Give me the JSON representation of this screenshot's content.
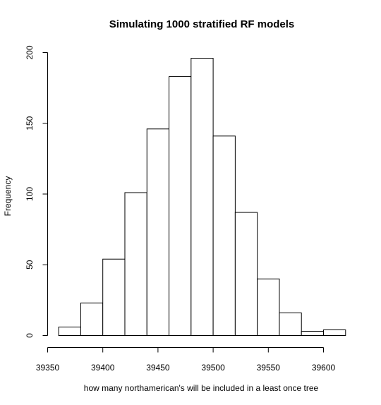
{
  "chart_data": {
    "type": "bar",
    "title": "Simulating 1000 stratified RF models",
    "xlabel": "how many northamerican's will be included in a least once tree",
    "ylabel": "Frequency",
    "bins": [
      {
        "start": 39360,
        "end": 39380,
        "count": 6
      },
      {
        "start": 39380,
        "end": 39400,
        "count": 23
      },
      {
        "start": 39400,
        "end": 39420,
        "count": 54
      },
      {
        "start": 39420,
        "end": 39440,
        "count": 101
      },
      {
        "start": 39440,
        "end": 39460,
        "count": 146
      },
      {
        "start": 39460,
        "end": 39480,
        "count": 183
      },
      {
        "start": 39480,
        "end": 39500,
        "count": 196
      },
      {
        "start": 39500,
        "end": 39520,
        "count": 141
      },
      {
        "start": 39520,
        "end": 39540,
        "count": 87
      },
      {
        "start": 39540,
        "end": 39560,
        "count": 40
      },
      {
        "start": 39560,
        "end": 39580,
        "count": 16
      },
      {
        "start": 39580,
        "end": 39600,
        "count": 3
      },
      {
        "start": 39600,
        "end": 39620,
        "count": 4
      }
    ],
    "xlim": [
      39350,
      39620
    ],
    "ylim": [
      0,
      200
    ],
    "xticks": [
      "39350",
      "39400",
      "39450",
      "39500",
      "39550",
      "39600"
    ],
    "yticks": [
      "0",
      "50",
      "100",
      "150",
      "200"
    ],
    "grid": false,
    "colors": {
      "fill": "#ffffff",
      "stroke": "#000000"
    }
  }
}
